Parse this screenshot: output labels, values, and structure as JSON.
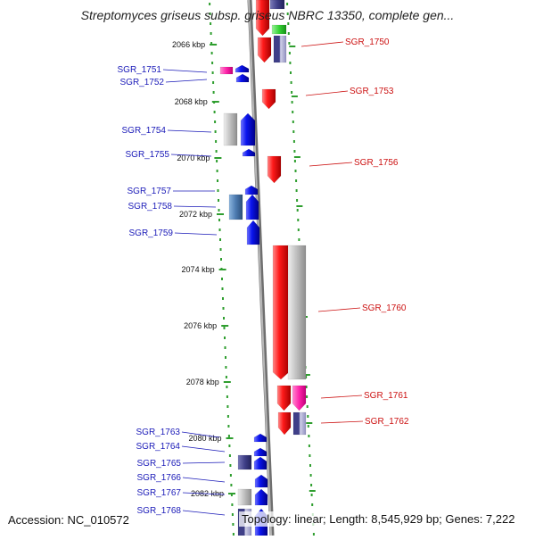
{
  "title": "Streptomyces griseus subsp. griseus NBRC 13350, complete gen...",
  "accession_text": "Accession: NC_010572",
  "topology_text": "Topology: linear; Length: 8,545,929 bp; Genes: 7,222",
  "colors": {
    "backbone": "#8a8a8a",
    "tick": "#2f9e2f",
    "forward_gene": "#ee1111",
    "reverse_gene": "#0a14ee",
    "pink_gene": "#ff33aa",
    "gray_gene": "#c0c0c0",
    "navy_gene": "#3f3f88",
    "steel_gene": "#4c7aaf",
    "green_gene": "#33d433",
    "label_left": "#1a1ab8",
    "label_right": "#cc1111"
  },
  "scale_ticks": [
    {
      "label": "2066 kbp"
    },
    {
      "label": "2068 kbp"
    },
    {
      "label": "2070 kbp"
    },
    {
      "label": "2072 kbp"
    },
    {
      "label": "2074 kbp"
    },
    {
      "label": "2076 kbp"
    },
    {
      "label": "2078 kbp"
    },
    {
      "label": "2080 kbp"
    },
    {
      "label": "2082 kbp"
    }
  ],
  "gene_labels_left": [
    "SGR_1751",
    "SGR_1752",
    "SGR_1754",
    "SGR_1755",
    "SGR_1757",
    "SGR_1758",
    "SGR_1759",
    "SGR_1763",
    "SGR_1764",
    "SGR_1765",
    "SGR_1766",
    "SGR_1767",
    "SGR_1768"
  ],
  "gene_labels_right": [
    "SGR_1750",
    "SGR_1753",
    "SGR_1756",
    "SGR_1760",
    "SGR_1761",
    "SGR_1762"
  ]
}
